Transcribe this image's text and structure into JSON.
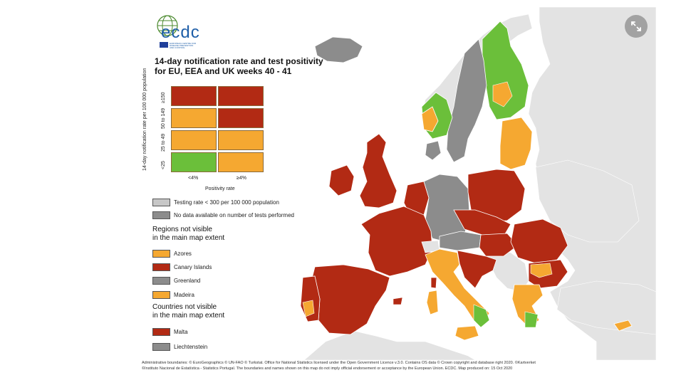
{
  "title_line1": "14-day notification rate and test positivity",
  "title_line2": "for EU, EEA and UK weeks 40 - 41",
  "logo": {
    "text": "ecdc",
    "sub1": "EUROPEAN CENTRE FOR",
    "sub2": "DISEASE PREVENTION",
    "sub3": "AND CONTROL"
  },
  "matrix": {
    "y_axis_title": "14-day notification rate per 100 000 population",
    "y_ticks": [
      "≥150",
      "50 to 149",
      "25 to 49",
      "<25"
    ],
    "x_ticks": [
      "<4%",
      "≥4%"
    ],
    "x_axis_title": "Positivity rate"
  },
  "legend": {
    "testing_rate_label": "Testing rate < 300 per 100 000 population",
    "no_data_label": "No data available on number of tests performed",
    "regions_title_line1": "Regions not visible",
    "regions_title_line2": "in the main map extent",
    "regions": [
      "Azores",
      "Canary Islands",
      "Greenland",
      "Madeira"
    ],
    "countries_title_line1": "Countries not visible",
    "countries_title_line2": "in the main map extent",
    "countries": [
      "Malta",
      "Liechtenstein"
    ]
  },
  "footer_line1": "Administrative boundaries: © EuroGeographics © UN-FAO © Turkstat. Office for National Statistics licensed under the Open Government Licence v.3.0. Contains OS data © Crown copyright and database right 2020. ©Kartverket",
  "footer_line2": "©Instituto Nacional de Estatística - Statistics Portugal. The boundaries and names shown on this map do not imply official endorsement or acceptance by the European Union. ECDC. Map produced on: 15 Oct 2020",
  "colors": {
    "red": "#b22a14",
    "orange": "#f5a831",
    "green": "#6bbf3a",
    "grey_light": "#c7c7c7",
    "grey_dark": "#8c8c8c",
    "non_eu": "#e3e3e3"
  },
  "icons": {
    "expand": "expand-icon"
  }
}
